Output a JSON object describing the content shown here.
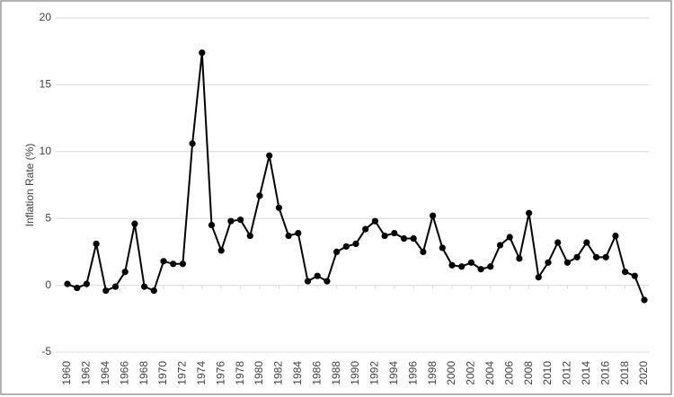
{
  "chart_data": {
    "type": "line",
    "y_label": "Inflation Rate (%)",
    "x": [
      1960,
      1961,
      1962,
      1963,
      1964,
      1965,
      1966,
      1967,
      1968,
      1969,
      1970,
      1971,
      1972,
      1973,
      1974,
      1975,
      1976,
      1977,
      1978,
      1979,
      1980,
      1981,
      1982,
      1983,
      1984,
      1985,
      1986,
      1987,
      1988,
      1989,
      1990,
      1991,
      1992,
      1993,
      1994,
      1995,
      1996,
      1997,
      1998,
      1999,
      2000,
      2001,
      2002,
      2003,
      2004,
      2005,
      2006,
      2007,
      2008,
      2009,
      2010,
      2011,
      2012,
      2013,
      2014,
      2015,
      2016,
      2017,
      2018,
      2019,
      2020
    ],
    "series": [
      {
        "color": "#000000",
        "values": [
          0.1,
          -0.2,
          0.1,
          3.1,
          -0.4,
          -0.1,
          1.0,
          4.6,
          -0.1,
          -0.4,
          1.8,
          1.6,
          1.6,
          10.6,
          17.4,
          4.5,
          2.6,
          4.8,
          4.9,
          3.7,
          6.7,
          9.7,
          5.8,
          3.7,
          3.9,
          0.3,
          0.7,
          0.3,
          2.5,
          2.9,
          3.1,
          4.2,
          4.8,
          3.7,
          3.9,
          3.5,
          3.5,
          2.5,
          5.2,
          2.8,
          1.5,
          1.4,
          1.7,
          1.2,
          1.4,
          3.0,
          3.6,
          2.0,
          5.4,
          0.6,
          1.7,
          3.2,
          1.7,
          2.1,
          3.2,
          2.1,
          2.1,
          3.7,
          1.0,
          0.7,
          -1.1
        ]
      }
    ],
    "xlim": [
      1960,
      2020
    ],
    "xticks": [
      1960,
      1962,
      1964,
      1966,
      1968,
      1970,
      1972,
      1974,
      1976,
      1978,
      1980,
      1982,
      1984,
      1986,
      1988,
      1990,
      1992,
      1994,
      1996,
      1998,
      2000,
      2002,
      2004,
      2006,
      2008,
      2010,
      2012,
      2014,
      2016,
      2018,
      2020
    ],
    "ylim": [
      -5,
      20
    ],
    "yticks": [
      -5,
      0,
      5,
      10,
      15,
      20
    ],
    "grid": true
  }
}
